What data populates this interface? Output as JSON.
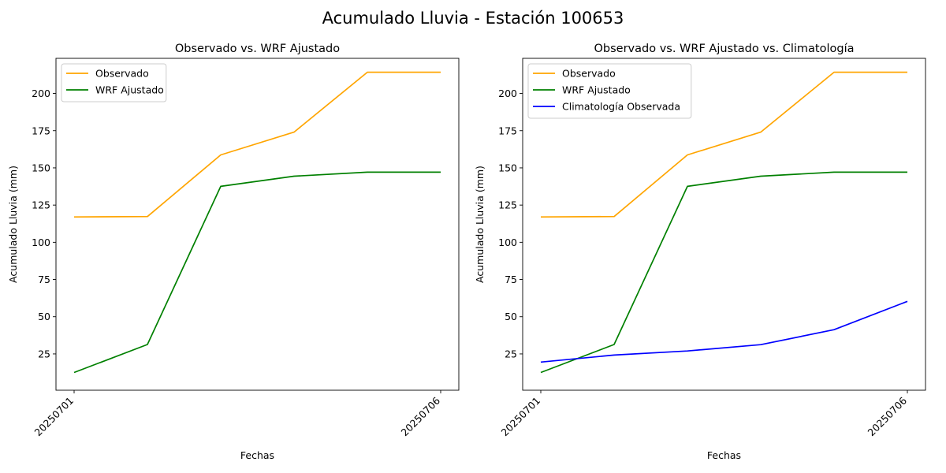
{
  "figure": {
    "suptitle": "Acumulado Lluvia - Estación 100653"
  },
  "colors": {
    "observado": "#ffa500",
    "wrf": "#008000",
    "clima": "#0000ff"
  },
  "chart_data": [
    {
      "type": "line",
      "title": "Observado vs. WRF Ajustado",
      "xlabel": "Fechas",
      "ylabel": "Acumulado Lluvia (mm)",
      "x": [
        "20250701",
        "20250702",
        "20250703",
        "20250704",
        "20250705",
        "20250706"
      ],
      "xticks": [
        "20250701",
        "20250706"
      ],
      "yticks": [
        25,
        50,
        75,
        100,
        125,
        150,
        175,
        200
      ],
      "ylim": [
        0.6,
        223.6
      ],
      "legend": "upper-left",
      "grid": false,
      "series": [
        {
          "name": "Observado",
          "color": "#ffa500",
          "values": [
            117.0,
            117.3,
            158.7,
            174.0,
            214.3,
            214.3
          ]
        },
        {
          "name": "WRF Ajustado",
          "color": "#008000",
          "values": [
            12.5,
            31.3,
            137.6,
            144.4,
            147.1,
            147.1
          ]
        }
      ]
    },
    {
      "type": "line",
      "title": "Observado vs. WRF Ajustado vs. Climatología",
      "xlabel": "Fechas",
      "ylabel": "Acumulado Lluvia (mm)",
      "x": [
        "20250701",
        "20250702",
        "20250703",
        "20250704",
        "20250705",
        "20250706"
      ],
      "xticks": [
        "20250701",
        "20250706"
      ],
      "yticks": [
        25,
        50,
        75,
        100,
        125,
        150,
        175,
        200
      ],
      "ylim": [
        0.6,
        223.6
      ],
      "legend": "upper-left",
      "grid": false,
      "series": [
        {
          "name": "Observado",
          "color": "#ffa500",
          "values": [
            117.0,
            117.3,
            158.7,
            174.0,
            214.3,
            214.3
          ]
        },
        {
          "name": "WRF Ajustado",
          "color": "#008000",
          "values": [
            12.5,
            31.3,
            137.6,
            144.4,
            147.1,
            147.1
          ]
        },
        {
          "name": "Climatología Observada",
          "color": "#0000ff",
          "values": [
            19.5,
            24.2,
            27.0,
            31.2,
            41.3,
            60.3
          ]
        }
      ]
    }
  ]
}
